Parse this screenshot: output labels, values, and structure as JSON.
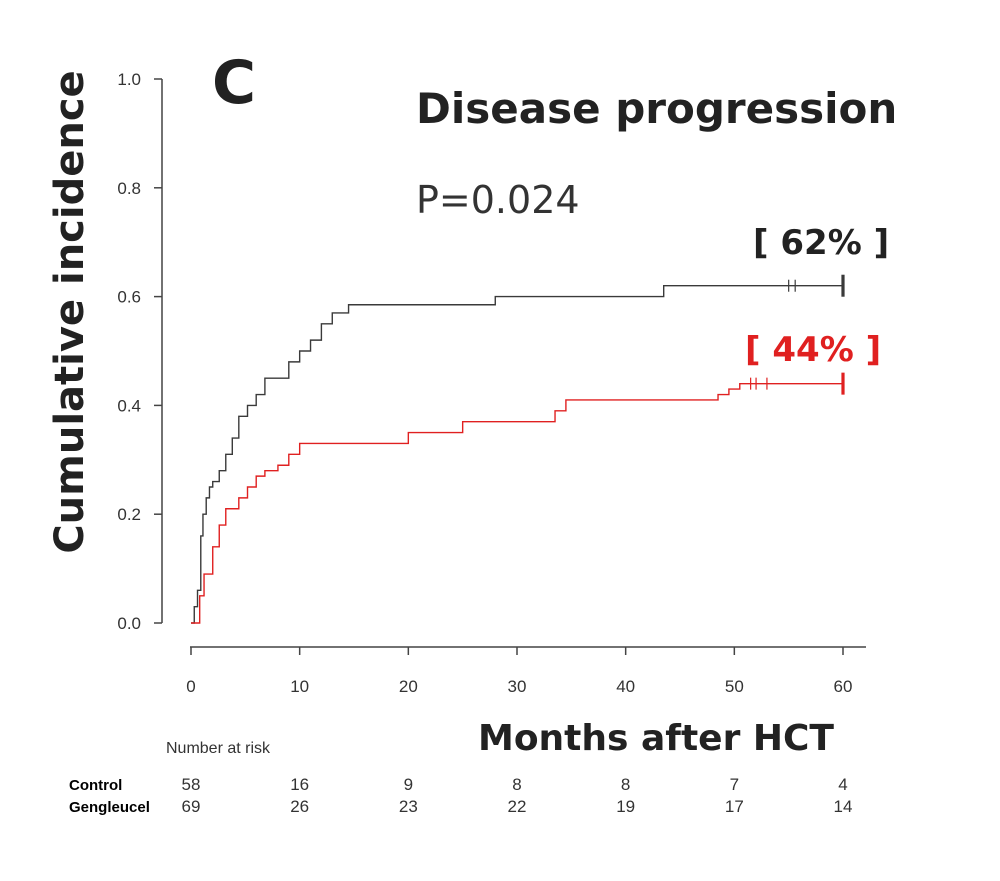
{
  "chart_data": {
    "type": "line",
    "panel_label": "C",
    "title": "Disease progression",
    "annotation": "P=0.024",
    "xlabel": "Months after HCT",
    "ylabel": "Cumulative incidence",
    "xlim": [
      0,
      60
    ],
    "ylim": [
      0,
      1
    ],
    "xticks": [
      "0",
      "10",
      "20",
      "30",
      "40",
      "50",
      "60"
    ],
    "yticks": [
      "0.0",
      "0.2",
      "0.4",
      "0.6",
      "0.8",
      "1.0"
    ],
    "grid": false,
    "series": [
      {
        "name": "Control",
        "color": "#3a3a3a",
        "end_label": "[ 62% ]",
        "x": [
          0,
          0.3,
          0.6,
          0.9,
          1.1,
          1.4,
          1.7,
          2.0,
          2.6,
          3.2,
          3.8,
          4.4,
          5.2,
          6.0,
          6.8,
          7.8,
          9.0,
          10.0,
          11.0,
          12.0,
          13.0,
          14.5,
          28.0,
          43.5,
          60.0
        ],
        "y": [
          0,
          0.03,
          0.06,
          0.16,
          0.2,
          0.23,
          0.25,
          0.26,
          0.28,
          0.31,
          0.34,
          0.38,
          0.4,
          0.42,
          0.45,
          0.45,
          0.48,
          0.5,
          0.52,
          0.55,
          0.57,
          0.585,
          0.6,
          0.62,
          0.62
        ],
        "censor_x": [
          55.0,
          55.6
        ],
        "end_value": 0.62
      },
      {
        "name": "Gengleucel",
        "color": "#e02020",
        "end_label": "[ 44% ]",
        "x": [
          0,
          0.8,
          1.2,
          2.0,
          2.6,
          3.2,
          4.4,
          5.2,
          6.0,
          6.8,
          8.0,
          9.0,
          10.0,
          20.0,
          25.0,
          33.5,
          34.5,
          48.5,
          49.5,
          50.5,
          60.0
        ],
        "y": [
          0,
          0.05,
          0.09,
          0.14,
          0.18,
          0.21,
          0.23,
          0.25,
          0.27,
          0.28,
          0.29,
          0.31,
          0.33,
          0.35,
          0.37,
          0.39,
          0.41,
          0.42,
          0.43,
          0.44,
          0.44
        ],
        "censor_x": [
          51.5,
          52.0,
          53.0
        ],
        "end_value": 0.44
      }
    ],
    "risk_table": {
      "header": "Number at risk",
      "times": [
        0,
        10,
        20,
        30,
        40,
        50,
        60
      ],
      "rows": [
        {
          "label": "Control",
          "values": [
            "58",
            "16",
            "9",
            "8",
            "8",
            "7",
            "4"
          ]
        },
        {
          "label": "Gengleucel",
          "values": [
            "69",
            "26",
            "23",
            "22",
            "19",
            "17",
            "14"
          ]
        }
      ]
    }
  }
}
